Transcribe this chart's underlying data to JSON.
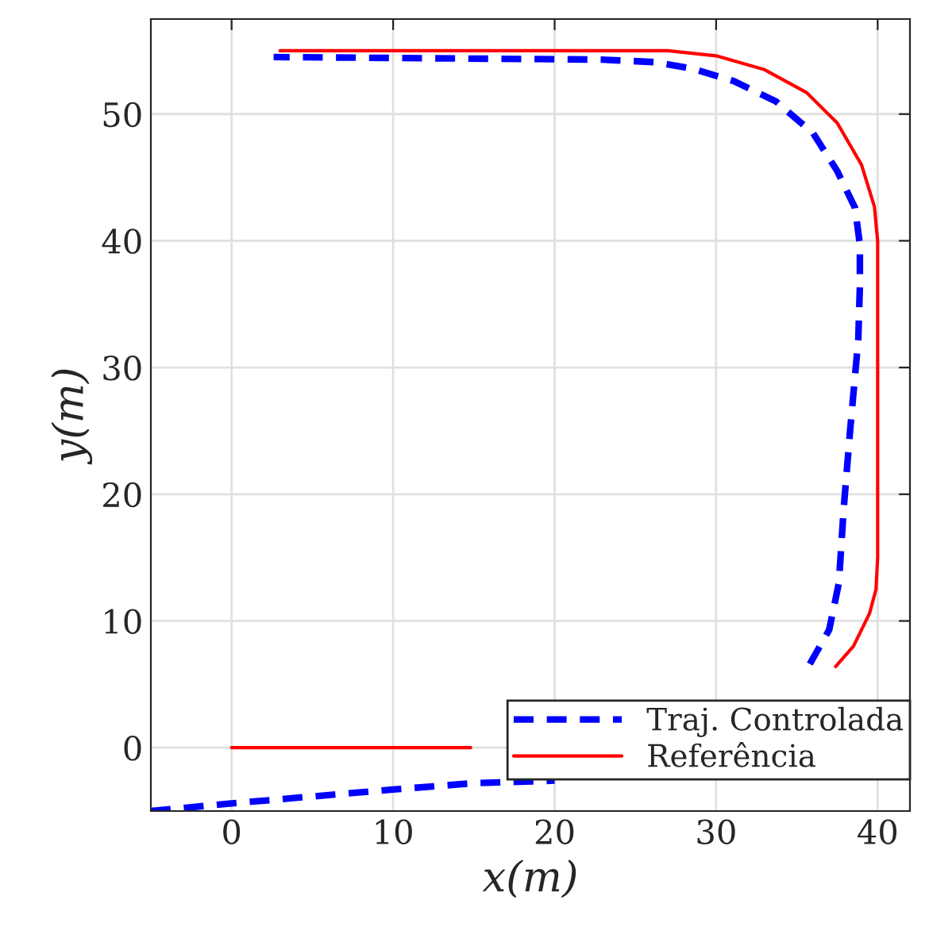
{
  "chart_data": {
    "type": "line",
    "xlabel": "x(m)",
    "ylabel": "y(m)",
    "series": [
      {
        "name": "Traj. Controlada",
        "color": "#0000ff",
        "line_style": "dashed",
        "x": [
          -5,
          0,
          10,
          15,
          20,
          null,
          35.8,
          37.0,
          37.6,
          37.9,
          38.3,
          38.8,
          38.9,
          38.9,
          38.6,
          37.5,
          36,
          33.7,
          31.1,
          28.5,
          26.2,
          22.9,
          2.6
        ],
        "values": [
          -5,
          -4.4,
          -3.3,
          -2.8,
          -2.6,
          null,
          6.6,
          9.3,
          13,
          18.9,
          25.1,
          32.2,
          36.4,
          39.7,
          42.6,
          45.5,
          48.5,
          51,
          52.6,
          53.6,
          54.1,
          54.3,
          54.5
        ]
      },
      {
        "name": "Referência",
        "color": "#ff0000",
        "line_style": "solid",
        "x": [
          0,
          14.8,
          null,
          37.4,
          38.5,
          39.5,
          39.9,
          40,
          40,
          39.8,
          39,
          37.5,
          35.6,
          33,
          30,
          27,
          25,
          3
        ],
        "values": [
          0,
          0,
          null,
          6.4,
          8,
          10.6,
          12.5,
          15,
          40,
          42.7,
          46,
          49.3,
          51.7,
          53.5,
          54.6,
          55,
          55,
          55
        ]
      }
    ],
    "xlim": [
      -5,
      42
    ],
    "ylim": [
      -5,
      57.5
    ],
    "xticks": [
      0,
      10,
      20,
      30,
      40
    ],
    "yticks": [
      0,
      10,
      20,
      30,
      40,
      50
    ],
    "grid": true,
    "legend": "bottom right",
    "marker": "none"
  }
}
